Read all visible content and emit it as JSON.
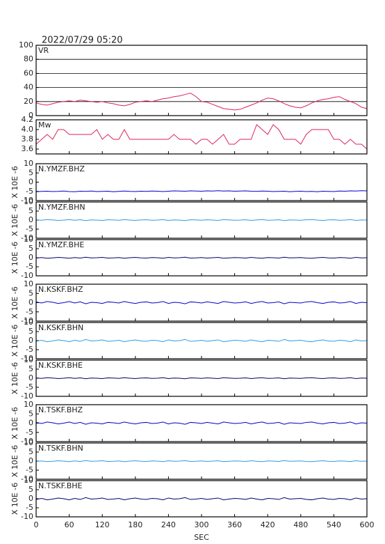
{
  "chart_data": {
    "type": "line",
    "title": "2022/07/29 05:20",
    "xlabel": "SEC",
    "xlim": [
      0,
      600
    ],
    "xticks": [
      0,
      60,
      120,
      180,
      240,
      300,
      360,
      420,
      480,
      540,
      600
    ],
    "x": [
      0,
      10,
      20,
      30,
      40,
      50,
      60,
      70,
      80,
      90,
      100,
      110,
      120,
      130,
      140,
      150,
      160,
      170,
      180,
      190,
      200,
      210,
      220,
      230,
      240,
      250,
      260,
      270,
      280,
      290,
      300,
      310,
      320,
      330,
      340,
      350,
      360,
      370,
      380,
      390,
      400,
      410,
      420,
      430,
      440,
      450,
      460,
      470,
      480,
      490,
      500,
      510,
      520,
      530,
      540,
      550,
      560,
      570,
      580,
      590,
      600
    ],
    "panels": [
      {
        "ylim": [
          0,
          100
        ],
        "yticks": [
          0,
          20,
          40,
          60,
          80,
          100
        ],
        "grid": true,
        "series": [
          {
            "name": "VR",
            "color": "#dd2255",
            "values": [
              18,
              16,
              15,
              17,
              19,
              20,
              21,
              20,
              22,
              21,
              20,
              19,
              20,
              18,
              17,
              15,
              14,
              16,
              19,
              20,
              21,
              20,
              22,
              24,
              25,
              27,
              28,
              30,
              32,
              27,
              20,
              19,
              16,
              13,
              10,
              9,
              8,
              9,
              12,
              15,
              18,
              22,
              25,
              24,
              21,
              17,
              14,
              12,
              11,
              14,
              18,
              21,
              23,
              24,
              26,
              27,
              23,
              20,
              17,
              12,
              10
            ]
          }
        ]
      },
      {
        "ylim": [
          3.5,
          4.2
        ],
        "yticks": [
          {
            "value": 3.6,
            "label": "3.6"
          },
          {
            "value": 3.8,
            "label": "3.8"
          },
          {
            "value": 4,
            "label": "4.0"
          },
          {
            "value": 4.2,
            "label": "4.2"
          }
        ],
        "grid": false,
        "series": [
          {
            "name": "Mw",
            "color": "#dd2255",
            "values": [
              3.7,
              3.8,
              3.9,
              3.8,
              4.0,
              4.0,
              3.9,
              3.9,
              3.9,
              3.9,
              3.9,
              4.0,
              3.8,
              3.9,
              3.8,
              3.8,
              4.0,
              3.8,
              3.8,
              3.8,
              3.8,
              3.8,
              3.8,
              3.8,
              3.8,
              3.9,
              3.8,
              3.8,
              3.8,
              3.7,
              3.8,
              3.8,
              3.7,
              3.8,
              3.9,
              3.7,
              3.7,
              3.8,
              3.8,
              3.8,
              4.1,
              4.0,
              3.9,
              4.1,
              4.0,
              3.8,
              3.8,
              3.8,
              3.7,
              3.9,
              4.0,
              4.0,
              4.0,
              4.0,
              3.8,
              3.8,
              3.7,
              3.8,
              3.7,
              3.7,
              3.6
            ]
          }
        ]
      },
      {
        "ylabel": "X 10E -6",
        "ylim": [
          -10,
          10
        ],
        "yticks": [
          -10,
          -5,
          0,
          5,
          10
        ],
        "grid": false,
        "series": [
          {
            "name": "N.YMZF.BHZ",
            "color": "#0000cc",
            "values": [
              -5.2,
              -5.0,
              -4.9,
              -5.1,
              -5.0,
              -4.8,
              -5.1,
              -5.2,
              -4.9,
              -5.0,
              -4.8,
              -5.1,
              -5.0,
              -4.9,
              -5.2,
              -5.0,
              -4.8,
              -5.0,
              -5.1,
              -4.9,
              -5.0,
              -4.8,
              -4.9,
              -5.1,
              -4.9,
              -4.7,
              -4.8,
              -4.9,
              -4.7,
              -4.8,
              -4.9,
              -4.7,
              -4.8,
              -4.6,
              -4.8,
              -4.7,
              -4.9,
              -4.8,
              -4.7,
              -4.9,
              -5.0,
              -4.8,
              -4.9,
              -5.1,
              -5.0,
              -4.9,
              -5.2,
              -5.0,
              -4.9,
              -5.1,
              -5.0,
              -5.2,
              -4.9,
              -5.0,
              -5.1,
              -4.8,
              -4.9,
              -4.7,
              -4.8,
              -4.6,
              -4.7
            ]
          }
        ]
      },
      {
        "ylabel": "X 10E -6",
        "ylim": [
          -10,
          10
        ],
        "yticks": [
          -10,
          -5,
          0,
          5,
          10
        ],
        "grid": false,
        "series": [
          {
            "name": "N.YMZF.BHN",
            "color": "#3399dd",
            "values": [
              0.2,
              -0.1,
              0.3,
              0.1,
              -0.2,
              0,
              0.3,
              -0.1,
              0.2,
              -0.3,
              0.1,
              0,
              -0.2,
              0.2,
              0.1,
              -0.1,
              0.3,
              0,
              -0.2,
              0.1,
              0.2,
              -0.1,
              0,
              0.3,
              -0.2,
              0.1,
              0,
              -0.3,
              0.2,
              0.1,
              -0.1,
              0.2,
              0,
              -0.2,
              0.3,
              0.1,
              -0.1,
              0,
              0.2,
              -0.2,
              0.1,
              0.3,
              -0.1,
              0,
              0.2,
              -0.3,
              0.1,
              0,
              -0.1,
              0.2,
              0.3,
              0,
              -0.2,
              0.1,
              0.2,
              -0.1,
              0,
              0.3,
              -0.2,
              0.1,
              0
            ]
          }
        ]
      },
      {
        "ylabel": "X 10E -6",
        "ylim": [
          -10,
          10
        ],
        "yticks": [
          -10,
          -5,
          0,
          5,
          10
        ],
        "grid": false,
        "series": [
          {
            "name": "N.YMZF.BHE",
            "color": "#000066",
            "values": [
              -0.2,
              0.1,
              -0.3,
              -0.1,
              0.2,
              0,
              -0.3,
              0.1,
              -0.2,
              0.3,
              -0.1,
              0,
              0.2,
              -0.2,
              -0.1,
              0.1,
              -0.3,
              0,
              0.2,
              -0.1,
              -0.2,
              0.1,
              0,
              -0.3,
              0.2,
              -0.1,
              0,
              0.3,
              -0.2,
              -0.1,
              0.1,
              -0.2,
              0,
              0.2,
              -0.3,
              -0.1,
              0.1,
              0,
              -0.2,
              0.2,
              -0.1,
              -0.3,
              0.1,
              0,
              -0.2,
              0.3,
              -0.1,
              0,
              0.1,
              -0.2,
              -0.3,
              0,
              0.2,
              -0.1,
              -0.2,
              0.1,
              0,
              -0.3,
              0.2,
              -0.1,
              0
            ]
          }
        ]
      },
      {
        "ylabel": "X 10E -6",
        "ylim": [
          -10,
          10
        ],
        "yticks": [
          -10,
          -5,
          0,
          5,
          10
        ],
        "grid": false,
        "series": [
          {
            "name": "N.KSKF.BHZ",
            "color": "#0000cc",
            "values": [
              0.4,
              -0.2,
              0.6,
              0.2,
              -0.4,
              0,
              0.6,
              -0.2,
              0.4,
              -0.6,
              0.2,
              0,
              -0.4,
              0.4,
              0.2,
              -0.2,
              0.6,
              0,
              -0.4,
              0.2,
              0.4,
              -0.2,
              0,
              0.6,
              -0.4,
              0.2,
              0,
              -0.6,
              0.4,
              0.2,
              -0.2,
              0.4,
              0,
              -0.4,
              0.6,
              0.2,
              -0.2,
              0,
              0.4,
              -0.4,
              0.2,
              0.6,
              -0.2,
              0,
              0.4,
              -0.6,
              0.2,
              0,
              -0.2,
              0.4,
              0.6,
              0,
              -0.4,
              0.2,
              0.4,
              -0.2,
              0,
              0.6,
              -0.4,
              0.2,
              0
            ]
          }
        ]
      },
      {
        "ylabel": "X 10E -6",
        "ylim": [
          -10,
          10
        ],
        "yticks": [
          -10,
          -5,
          0,
          5,
          10
        ],
        "grid": false,
        "series": [
          {
            "name": "N.KSKF.BHN",
            "color": "#3399dd",
            "values": [
              -0.4,
              0.2,
              -0.6,
              -0.2,
              0.4,
              0,
              -0.6,
              0.2,
              -0.4,
              0.6,
              -0.2,
              0,
              0.4,
              -0.4,
              -0.2,
              0.2,
              -0.6,
              0,
              0.4,
              -0.2,
              -0.4,
              0.2,
              0,
              -0.6,
              0.4,
              -0.2,
              0,
              0.6,
              -0.4,
              -0.2,
              0.2,
              -0.4,
              0,
              0.4,
              -0.6,
              -0.2,
              0.2,
              0,
              -0.4,
              0.4,
              -0.2,
              -0.6,
              0.2,
              0,
              -0.4,
              0.6,
              -0.2,
              0,
              0.2,
              -0.4,
              -0.6,
              0,
              0.4,
              -0.2,
              -0.4,
              0.2,
              0,
              -0.6,
              0.4,
              -0.2,
              0
            ]
          }
        ]
      },
      {
        "ylabel": "X 10E -6",
        "ylim": [
          -10,
          10
        ],
        "yticks": [
          -10,
          -5,
          0,
          5,
          10
        ],
        "grid": false,
        "series": [
          {
            "name": "N.KSKF.BHE",
            "color": "#000066",
            "values": [
              0.2,
              -0.1,
              0.3,
              0.1,
              -0.2,
              0,
              0.3,
              -0.1,
              0.2,
              -0.3,
              0.1,
              0,
              -0.2,
              0.2,
              0.1,
              -0.1,
              0.3,
              0,
              -0.2,
              0.1,
              0.2,
              -0.1,
              0,
              0.3,
              -0.2,
              0.1,
              0,
              -0.3,
              0.2,
              0.1,
              -0.1,
              0.2,
              0,
              -0.2,
              0.3,
              0.1,
              -0.1,
              0,
              0.2,
              -0.2,
              0.1,
              0.3,
              -0.1,
              0,
              0.2,
              -0.3,
              0.1,
              0,
              -0.1,
              0.2,
              0.3,
              0,
              -0.2,
              0.1,
              0.2,
              -0.1,
              0,
              0.3,
              -0.2,
              0.1,
              0
            ]
          }
        ]
      },
      {
        "ylabel": "X 10E -6",
        "ylim": [
          -10,
          10
        ],
        "yticks": [
          -10,
          -5,
          0,
          5,
          10
        ],
        "grid": false,
        "series": [
          {
            "name": "N.TSKF.BHZ",
            "color": "#0000cc",
            "values": [
              0.4,
              -0.2,
              0.6,
              0.2,
              -0.4,
              0,
              0.6,
              -0.2,
              0.4,
              -0.6,
              0.2,
              0,
              -0.4,
              0.4,
              0.2,
              -0.2,
              0.6,
              0,
              -0.4,
              0.2,
              0.4,
              -0.2,
              0,
              0.6,
              -0.4,
              0.2,
              0,
              -0.6,
              0.4,
              0.2,
              -0.2,
              0.4,
              0,
              -0.4,
              0.6,
              0.2,
              -0.2,
              0,
              0.4,
              -0.4,
              0.2,
              0.6,
              -0.2,
              0,
              0.4,
              -0.6,
              0.2,
              0,
              -0.2,
              0.4,
              0.6,
              0,
              -0.4,
              0.2,
              0.4,
              -0.2,
              0,
              0.6,
              -0.4,
              0.2,
              0
            ]
          }
        ]
      },
      {
        "ylabel": "X 10E -6",
        "ylim": [
          -10,
          10
        ],
        "yticks": [
          -10,
          -5,
          0,
          5,
          10
        ],
        "grid": false,
        "series": [
          {
            "name": "N.TSKF.BHN",
            "color": "#3399dd",
            "values": [
              -0.2,
              0.1,
              -0.3,
              -0.1,
              0.2,
              0,
              -0.3,
              0.1,
              -0.2,
              0.3,
              -0.1,
              0,
              0.2,
              -0.2,
              -0.1,
              0.1,
              -0.3,
              0,
              0.2,
              -0.1,
              -0.2,
              0.1,
              0,
              -0.3,
              0.2,
              -0.1,
              0,
              0.3,
              -0.2,
              -0.1,
              0.1,
              -0.2,
              0,
              0.2,
              -0.3,
              -0.1,
              0.1,
              0,
              -0.2,
              0.2,
              -0.1,
              -0.3,
              0.1,
              0,
              -0.2,
              0.3,
              -0.1,
              0,
              0.1,
              -0.2,
              -0.3,
              0,
              0.2,
              -0.1,
              -0.2,
              0.1,
              0,
              -0.3,
              0.2,
              -0.1,
              0
            ]
          }
        ]
      },
      {
        "ylabel": "X 10E -6",
        "ylim": [
          -10,
          10
        ],
        "yticks": [
          -10,
          -5,
          0,
          5,
          10
        ],
        "grid": false,
        "series": [
          {
            "name": "N.TSKF.BHE",
            "color": "#000066",
            "values": [
              -0.4,
              0.2,
              -0.6,
              -0.2,
              0.4,
              0,
              -0.6,
              0.2,
              -0.4,
              0.6,
              -0.2,
              0,
              0.4,
              -0.4,
              -0.2,
              0.2,
              -0.6,
              0,
              0.4,
              -0.2,
              -0.4,
              0.2,
              0,
              -0.6,
              0.4,
              -0.2,
              0,
              0.6,
              -0.4,
              -0.2,
              0.2,
              -0.4,
              0,
              0.4,
              -0.6,
              -0.2,
              0.2,
              0,
              -0.4,
              0.4,
              -0.2,
              -0.6,
              0.2,
              0,
              -0.4,
              0.6,
              -0.2,
              0,
              0.2,
              -0.4,
              -0.6,
              0,
              0.4,
              -0.2,
              -0.4,
              0.2,
              0,
              -0.6,
              0.4,
              -0.2,
              0
            ]
          }
        ]
      }
    ]
  }
}
